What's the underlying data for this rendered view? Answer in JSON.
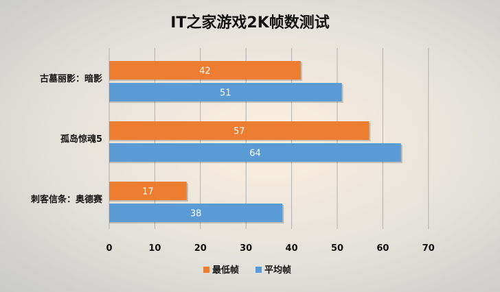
{
  "chart_data": {
    "type": "bar",
    "orientation": "horizontal",
    "title": "IT之家游戏2K帧数测试",
    "categories": [
      "古墓丽影：暗影",
      "孤岛惊魂5",
      "刺客信条：奥德赛"
    ],
    "series": [
      {
        "name": "最低帧",
        "color": "#ed7d31",
        "values": [
          42,
          57,
          17
        ]
      },
      {
        "name": "平均帧",
        "color": "#5b9bd5",
        "values": [
          51,
          64,
          38
        ]
      }
    ],
    "xlim": [
      0,
      70
    ],
    "xticks": [
      0,
      10,
      20,
      30,
      40,
      50,
      60,
      70
    ],
    "grid": true,
    "legend": "bottom"
  }
}
